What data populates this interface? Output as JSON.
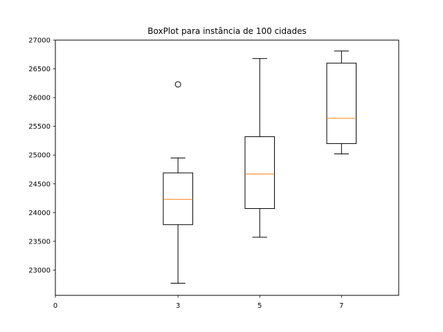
{
  "chart_data": {
    "type": "boxplot",
    "title": "BoxPlot para instância de 100 cidades",
    "xlabel": "",
    "ylabel": "",
    "x_ticks": [
      "0",
      "3",
      "5",
      "7"
    ],
    "y_ticks": [
      "23000",
      "23500",
      "24000",
      "24500",
      "25000",
      "25500",
      "26000",
      "26500",
      "27000"
    ],
    "ylim": [
      22560,
      27000
    ],
    "grid": false,
    "boxes": [
      {
        "category": "3",
        "whisker_low": 22770,
        "q1": 23790,
        "median": 24230,
        "q3": 24690,
        "whisker_high": 24950,
        "outliers": [
          26230
        ]
      },
      {
        "category": "5",
        "whisker_low": 23570,
        "q1": 24070,
        "median": 24670,
        "q3": 25320,
        "whisker_high": 26680,
        "outliers": []
      },
      {
        "category": "7",
        "whisker_low": 25020,
        "q1": 25200,
        "median": 25640,
        "q3": 26600,
        "whisker_high": 26810,
        "outliers": []
      }
    ],
    "colors": {
      "box": "#000000",
      "median": "#ff7f0e",
      "outlier": "#000000"
    }
  }
}
